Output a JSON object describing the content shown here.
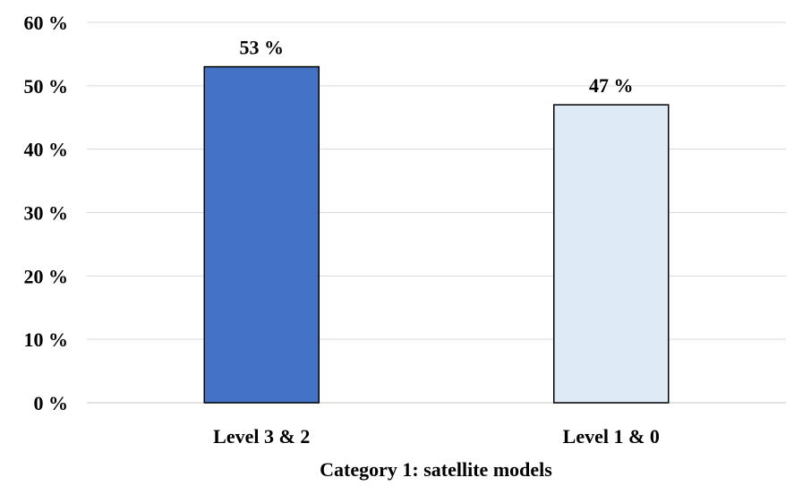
{
  "chart_data": {
    "type": "bar",
    "title": "",
    "xlabel": "Category 1: satellite models",
    "ylabel": "",
    "categories": [
      "Level 3 & 2",
      "Level 1 & 0"
    ],
    "values": [
      53,
      47
    ],
    "data_labels": [
      "53 %",
      "47 %"
    ],
    "bar_colors": [
      "#4472c4",
      "#deebf7"
    ],
    "ylim": [
      0,
      60
    ],
    "yticks": [
      0,
      10,
      20,
      30,
      40,
      50,
      60
    ],
    "ytick_labels": [
      "0 %",
      "10 %",
      "20 %",
      "30 %",
      "40 %",
      "50 %",
      "60 %"
    ],
    "grid": true,
    "legend": "none"
  }
}
